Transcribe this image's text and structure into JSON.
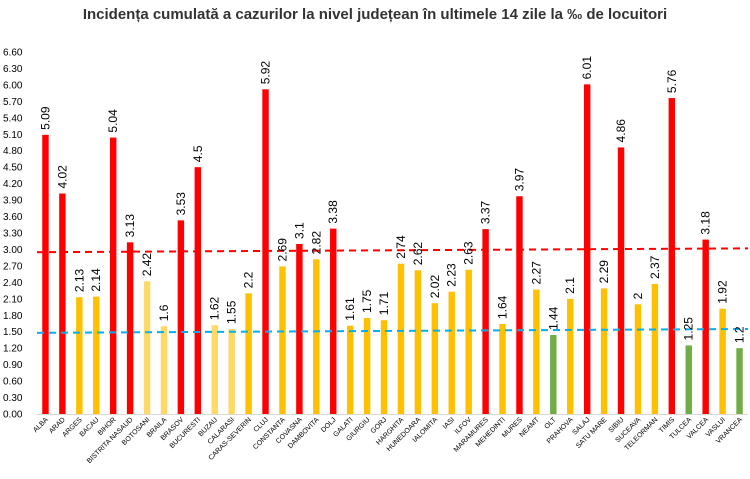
{
  "title": "Incidența cumulată a cazurilor la nivel județean în ultimele 14 zile la ‰ de locuitori",
  "chart_data": {
    "type": "bar",
    "title": "Incidența cumulată a cazurilor la nivel județean în ultimele 14 zile la ‰ de locuitori",
    "ylim": [
      0,
      6.6
    ],
    "yticks": [
      "0.00",
      "0.30",
      "0.60",
      "0.90",
      "1.20",
      "1.50",
      "1.80",
      "2.10",
      "2.40",
      "2.70",
      "3.00",
      "3.30",
      "3.60",
      "3.90",
      "4.20",
      "4.50",
      "4.80",
      "5.10",
      "5.40",
      "5.70",
      "6.00",
      "6.30",
      "6.60"
    ],
    "grid": false,
    "categories": [
      "ALBA",
      "ARAD",
      "ARGES",
      "BACAU",
      "BIHOR",
      "BISTRITA NASAUD",
      "BOTOSANI",
      "BRAILA",
      "BRASOV",
      "BUCURESTI",
      "BUZAU",
      "CALARASI",
      "CARAS-SEVERIN",
      "CLUJ",
      "CONSTANTA",
      "COVASNA",
      "DAMBOVITA",
      "DOLJ",
      "GALATI",
      "GIURGIU",
      "GORJ",
      "HARGHITA",
      "HUNEDOARA",
      "IALOMITA",
      "IASI",
      "ILFOV",
      "MARAMURES",
      "MEHEDINTI",
      "MURES",
      "NEAMT",
      "OLT",
      "PRAHOVA",
      "SALAJ",
      "SATU MARE",
      "SIBIU",
      "SUCEAVA",
      "TELEORMAN",
      "TIMIS",
      "TULCEA",
      "VALCEA",
      "VASLUI",
      "VRANCEA"
    ],
    "values": [
      5.09,
      4.02,
      2.13,
      2.14,
      5.04,
      3.13,
      2.42,
      1.6,
      3.53,
      4.5,
      1.62,
      1.55,
      2.2,
      5.92,
      2.69,
      3.1,
      2.82,
      3.38,
      1.61,
      1.75,
      1.71,
      2.74,
      2.62,
      2.02,
      2.23,
      2.63,
      3.37,
      1.64,
      3.97,
      2.27,
      1.44,
      2.1,
      6.01,
      2.29,
      4.86,
      2,
      2.37,
      5.76,
      1.25,
      3.18,
      1.92,
      1.2
    ],
    "value_labels": [
      "5.09",
      "4.02",
      "2.13",
      "2.14",
      "5.04",
      "3.13",
      "2.42",
      "1.6",
      "3.53",
      "4.5",
      "1.62",
      "1.55",
      "2.2",
      "5.92",
      "2.69",
      "3.1",
      "2.82",
      "3.38",
      "1.61",
      "1.75",
      "1.71",
      "2.74",
      "2.62",
      "2.02",
      "2.23",
      "2.63",
      "3.37",
      "1.64",
      "3.97",
      "2.27",
      "1.44",
      "2.1",
      "6.01",
      "2.29",
      "4.86",
      "2",
      "2.37",
      "5.76",
      "1.25",
      "3.18",
      "1.92",
      "1.2"
    ],
    "bar_colors": [
      "#ff0000",
      "#ff0000",
      "#ffc000",
      "#ffc000",
      "#ff0000",
      "#ff0000",
      "#ffd966",
      "#ffd966",
      "#ff0000",
      "#ff0000",
      "#ffd966",
      "#ffd966",
      "#ffc000",
      "#ff0000",
      "#ffc000",
      "#ff0000",
      "#ffc000",
      "#ff0000",
      "#ffc000",
      "#ffc000",
      "#ffc000",
      "#ffc000",
      "#ffc000",
      "#ffc000",
      "#ffc000",
      "#ffc000",
      "#ff0000",
      "#ffc000",
      "#ff0000",
      "#ffc000",
      "#70ad47",
      "#ffc000",
      "#ff0000",
      "#ffc000",
      "#ff0000",
      "#ffc000",
      "#ffc000",
      "#ff0000",
      "#70ad47",
      "#ff0000",
      "#ffc000",
      "#70ad47"
    ],
    "reference_lines": [
      {
        "color": "#ff0000",
        "start_value": 2.95,
        "end_value": 3.02
      },
      {
        "color": "#00b0f0",
        "start_value": 1.48,
        "end_value": 1.55
      }
    ]
  }
}
